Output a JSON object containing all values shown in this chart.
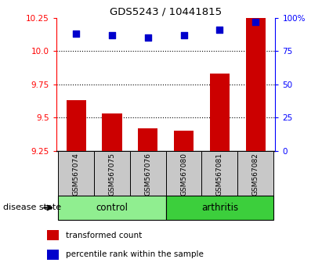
{
  "title": "GDS5243 / 10441815",
  "samples": [
    "GSM567074",
    "GSM567075",
    "GSM567076",
    "GSM567080",
    "GSM567081",
    "GSM567082"
  ],
  "transformed_counts": [
    9.63,
    9.53,
    9.42,
    9.4,
    9.83,
    10.25
  ],
  "percentile_ranks": [
    88,
    87,
    85,
    87,
    91,
    97
  ],
  "ylim_left": [
    9.25,
    10.25
  ],
  "ylim_right": [
    0,
    100
  ],
  "yticks_left": [
    9.25,
    9.5,
    9.75,
    10.0,
    10.25
  ],
  "yticks_right": [
    0,
    25,
    50,
    75,
    100
  ],
  "groups": [
    {
      "label": "control",
      "indices": [
        0,
        1,
        2
      ],
      "color": "#90EE90"
    },
    {
      "label": "arthritis",
      "indices": [
        3,
        4,
        5
      ],
      "color": "#3CCF3C"
    }
  ],
  "bar_color": "#CC0000",
  "marker_color": "#0000CC",
  "grid_color": "#000000",
  "bar_width": 0.55,
  "tick_area_color": "#C8C8C8",
  "group_label_prefix": "disease state",
  "legend_items": [
    {
      "label": "transformed count",
      "color": "#CC0000"
    },
    {
      "label": "percentile rank within the sample",
      "color": "#0000CC"
    }
  ]
}
